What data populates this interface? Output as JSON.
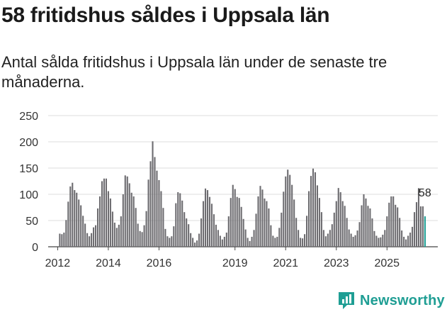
{
  "title": "58 fritidshus såldes i Uppsala län",
  "subtitle": "Antal sålda fritidshus i Uppsala län under de senaste tre månaderna.",
  "brand": {
    "name": "Newsworthy",
    "color": "#1f9e94"
  },
  "chart_data": {
    "type": "bar",
    "title": "58 fritidshus såldes i Uppsala län",
    "xlabel": "",
    "ylabel": "",
    "ylim": [
      0,
      250
    ],
    "yticks": [
      0,
      50,
      100,
      150,
      200,
      250
    ],
    "xticks": [
      "2012",
      "2014",
      "2016",
      "2019",
      "2021",
      "2023",
      "2025"
    ],
    "xtick_months": [
      36,
      60,
      84,
      120,
      144,
      168,
      192
    ],
    "bar_color": "#6d6c70",
    "highlight_color": "#1f9e94",
    "grid": true,
    "start_month_index": 36,
    "values": [
      0,
      25,
      24,
      27,
      51,
      86,
      115,
      122,
      108,
      103,
      90,
      79,
      59,
      44,
      26,
      20,
      26,
      37,
      41,
      73,
      96,
      125,
      130,
      130,
      106,
      92,
      67,
      46,
      36,
      42,
      58,
      100,
      136,
      134,
      121,
      103,
      96,
      74,
      44,
      30,
      28,
      41,
      68,
      128,
      163,
      201,
      171,
      145,
      127,
      106,
      74,
      34,
      20,
      17,
      20,
      39,
      83,
      104,
      102,
      88,
      66,
      54,
      43,
      26,
      17,
      8,
      12,
      25,
      54,
      87,
      111,
      108,
      95,
      82,
      62,
      42,
      32,
      21,
      14,
      19,
      27,
      58,
      93,
      118,
      110,
      95,
      93,
      76,
      53,
      33,
      17,
      11,
      19,
      32,
      63,
      96,
      116,
      109,
      92,
      87,
      73,
      41,
      21,
      17,
      19,
      36,
      65,
      105,
      134,
      147,
      137,
      118,
      90,
      55,
      32,
      17,
      16,
      24,
      59,
      106,
      135,
      149,
      142,
      117,
      93,
      66,
      32,
      20,
      25,
      32,
      43,
      65,
      87,
      112,
      104,
      87,
      78,
      55,
      33,
      25,
      19,
      22,
      31,
      47,
      79,
      100,
      92,
      78,
      73,
      54,
      30,
      21,
      17,
      18,
      23,
      32,
      58,
      84,
      96,
      96,
      80,
      75,
      55,
      31,
      19,
      14,
      21,
      27,
      38,
      66,
      85,
      111,
      77,
      77,
      58
    ],
    "annotations": [
      {
        "label": "58",
        "value": 58,
        "position": "last-bar"
      }
    ]
  }
}
